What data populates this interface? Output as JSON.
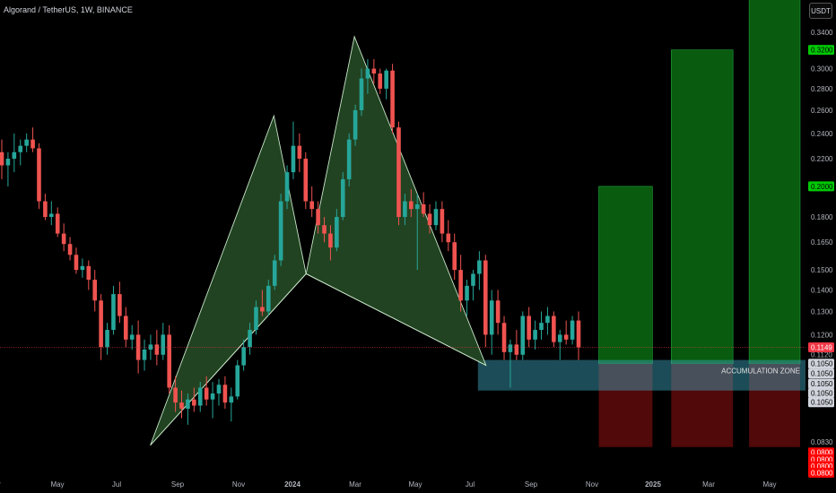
{
  "header": {
    "title": "Algorand / TetherUS, 1W, BINANCE",
    "currency": "USDT"
  },
  "chart_data": {
    "type": "candlestick",
    "title": "Algorand / TetherUS, 1W, BINANCE",
    "y_scale": "log",
    "ylim": [
      0.074,
      0.38
    ],
    "y_ticks": [
      "0.3400",
      "0.3000",
      "0.2800",
      "0.2600",
      "0.2400",
      "0.2200",
      "0.1800",
      "0.1650",
      "0.1500",
      "0.1400",
      "0.1300",
      "0.1200",
      "0.1120",
      "0.0830"
    ],
    "x_ticks": [
      "Mar",
      "May",
      "Jul",
      "Sep",
      "Nov",
      "2024",
      "Mar",
      "May",
      "Jul",
      "Sep",
      "Nov",
      "2025",
      "Mar",
      "May"
    ],
    "current_price": "0.1149",
    "price_tags": [
      {
        "label": "0.3200",
        "value": 0.32,
        "color": "#00c805",
        "text": "#000000"
      },
      {
        "label": "0.2000",
        "value": 0.2,
        "color": "#00c805",
        "text": "#000000"
      },
      {
        "label": "0.1149",
        "value": 0.1149,
        "color": "#f23645",
        "text": "#ffffff"
      },
      {
        "label": "0.1050",
        "value": 0.1086,
        "color": "#d1d4dc",
        "text": "#000000"
      },
      {
        "label": "0.1050",
        "value": 0.105,
        "color": "#d1d4dc",
        "text": "#000000"
      },
      {
        "label": "0.1050",
        "value": 0.1014,
        "color": "#d1d4dc",
        "text": "#000000"
      },
      {
        "label": "0.1050",
        "value": 0.0982,
        "color": "#d1d4dc",
        "text": "#000000"
      },
      {
        "label": "0.1050",
        "value": 0.0951,
        "color": "#d1d4dc",
        "text": "#000000"
      },
      {
        "label": "0.0800",
        "value": 0.08,
        "color": "#ff0000",
        "text": "#ffffff"
      },
      {
        "label": "0.0800",
        "value": 0.0781,
        "color": "#ff0000",
        "text": "#ffffff"
      },
      {
        "label": "0.0800",
        "value": 0.0763,
        "color": "#ff0000",
        "text": "#ffffff"
      },
      {
        "label": "0.0800",
        "value": 0.0746,
        "color": "#ff0000",
        "text": "#ffffff"
      }
    ],
    "annotations": {
      "accumulation_zone": "ACCUMULATION ZONE"
    },
    "colors": {
      "up": "#26a69a",
      "down": "#ef5350",
      "pattern_fill": "#2e5a2c",
      "pattern_line": "#c8e6c9",
      "target_green": "#0b6b12",
      "target_red": "#5a0a0a",
      "zone": "#1a4a55"
    },
    "harmonic_points": [
      [
        0.29,
        0.082
      ],
      [
        0.52,
        0.255
      ],
      [
        0.58,
        0.148
      ],
      [
        0.67,
        0.335
      ],
      [
        0.915,
        0.108
      ]
    ],
    "accumulation_zone": {
      "x0": 0.9,
      "x1": 1.5,
      "y_low": 0.099,
      "y_high": 0.11
    },
    "targets": [
      {
        "x0": 1.125,
        "x1": 1.225,
        "top": 0.2,
        "bottom": 0.0815
      },
      {
        "x0": 1.26,
        "x1": 1.375,
        "top": 0.32,
        "bottom": 0.0815
      },
      {
        "x0": 1.405,
        "x1": 1.5,
        "top": 0.42,
        "bottom": 0.0815
      }
    ],
    "candles": [
      [
        0.225,
        0.235,
        0.205,
        0.215
      ],
      [
        0.215,
        0.225,
        0.2,
        0.22
      ],
      [
        0.22,
        0.24,
        0.21,
        0.225
      ],
      [
        0.225,
        0.235,
        0.215,
        0.23
      ],
      [
        0.23,
        0.24,
        0.225,
        0.235
      ],
      [
        0.235,
        0.245,
        0.225,
        0.228
      ],
      [
        0.228,
        0.232,
        0.185,
        0.19
      ],
      [
        0.19,
        0.195,
        0.178,
        0.18
      ],
      [
        0.18,
        0.19,
        0.175,
        0.182
      ],
      [
        0.182,
        0.186,
        0.168,
        0.17
      ],
      [
        0.17,
        0.176,
        0.16,
        0.164
      ],
      [
        0.164,
        0.168,
        0.155,
        0.158
      ],
      [
        0.158,
        0.162,
        0.148,
        0.15
      ],
      [
        0.15,
        0.156,
        0.146,
        0.152
      ],
      [
        0.152,
        0.155,
        0.14,
        0.145
      ],
      [
        0.145,
        0.15,
        0.13,
        0.135
      ],
      [
        0.135,
        0.138,
        0.11,
        0.115
      ],
      [
        0.115,
        0.125,
        0.112,
        0.122
      ],
      [
        0.122,
        0.142,
        0.12,
        0.138
      ],
      [
        0.138,
        0.144,
        0.125,
        0.128
      ],
      [
        0.128,
        0.132,
        0.115,
        0.118
      ],
      [
        0.118,
        0.124,
        0.114,
        0.12
      ],
      [
        0.12,
        0.126,
        0.105,
        0.11
      ],
      [
        0.11,
        0.118,
        0.106,
        0.114
      ],
      [
        0.114,
        0.12,
        0.11,
        0.116
      ],
      [
        0.116,
        0.122,
        0.108,
        0.112
      ],
      [
        0.112,
        0.125,
        0.11,
        0.12
      ],
      [
        0.12,
        0.124,
        0.098,
        0.1
      ],
      [
        0.1,
        0.104,
        0.092,
        0.095
      ],
      [
        0.095,
        0.099,
        0.09,
        0.093
      ],
      [
        0.093,
        0.098,
        0.088,
        0.096
      ],
      [
        0.096,
        0.1,
        0.092,
        0.094
      ],
      [
        0.094,
        0.102,
        0.092,
        0.1
      ],
      [
        0.1,
        0.104,
        0.094,
        0.096
      ],
      [
        0.096,
        0.102,
        0.09,
        0.098
      ],
      [
        0.098,
        0.103,
        0.094,
        0.101
      ],
      [
        0.101,
        0.104,
        0.093,
        0.095
      ],
      [
        0.095,
        0.1,
        0.089,
        0.097
      ],
      [
        0.097,
        0.11,
        0.096,
        0.108
      ],
      [
        0.108,
        0.118,
        0.106,
        0.115
      ],
      [
        0.115,
        0.125,
        0.112,
        0.122
      ],
      [
        0.122,
        0.135,
        0.12,
        0.132
      ],
      [
        0.132,
        0.14,
        0.128,
        0.13
      ],
      [
        0.13,
        0.145,
        0.128,
        0.142
      ],
      [
        0.142,
        0.158,
        0.14,
        0.155
      ],
      [
        0.155,
        0.195,
        0.152,
        0.19
      ],
      [
        0.19,
        0.215,
        0.185,
        0.21
      ],
      [
        0.21,
        0.25,
        0.205,
        0.23
      ],
      [
        0.23,
        0.24,
        0.21,
        0.22
      ],
      [
        0.22,
        0.225,
        0.185,
        0.19
      ],
      [
        0.19,
        0.2,
        0.18,
        0.185
      ],
      [
        0.185,
        0.19,
        0.17,
        0.175
      ],
      [
        0.175,
        0.18,
        0.165,
        0.17
      ],
      [
        0.17,
        0.175,
        0.155,
        0.162
      ],
      [
        0.162,
        0.185,
        0.16,
        0.18
      ],
      [
        0.18,
        0.21,
        0.178,
        0.205
      ],
      [
        0.205,
        0.24,
        0.2,
        0.235
      ],
      [
        0.235,
        0.265,
        0.23,
        0.26
      ],
      [
        0.26,
        0.3,
        0.255,
        0.29
      ],
      [
        0.29,
        0.31,
        0.275,
        0.3
      ],
      [
        0.3,
        0.31,
        0.285,
        0.295
      ],
      [
        0.295,
        0.3,
        0.275,
        0.28
      ],
      [
        0.28,
        0.3,
        0.27,
        0.298
      ],
      [
        0.298,
        0.305,
        0.24,
        0.245
      ],
      [
        0.245,
        0.25,
        0.175,
        0.18
      ],
      [
        0.18,
        0.195,
        0.175,
        0.19
      ],
      [
        0.19,
        0.198,
        0.18,
        0.185
      ],
      [
        0.185,
        0.195,
        0.15,
        0.188
      ],
      [
        0.188,
        0.196,
        0.18,
        0.182
      ],
      [
        0.182,
        0.188,
        0.17,
        0.175
      ],
      [
        0.175,
        0.19,
        0.172,
        0.185
      ],
      [
        0.185,
        0.19,
        0.165,
        0.17
      ],
      [
        0.17,
        0.178,
        0.16,
        0.165
      ],
      [
        0.165,
        0.17,
        0.145,
        0.15
      ],
      [
        0.15,
        0.158,
        0.13,
        0.135
      ],
      [
        0.135,
        0.145,
        0.128,
        0.142
      ],
      [
        0.142,
        0.15,
        0.135,
        0.148
      ],
      [
        0.148,
        0.16,
        0.14,
        0.155
      ],
      [
        0.155,
        0.158,
        0.115,
        0.12
      ],
      [
        0.12,
        0.14,
        0.112,
        0.135
      ],
      [
        0.135,
        0.14,
        0.12,
        0.125
      ],
      [
        0.125,
        0.128,
        0.11,
        0.113
      ],
      [
        0.113,
        0.118,
        0.1,
        0.116
      ],
      [
        0.116,
        0.122,
        0.11,
        0.112
      ],
      [
        0.112,
        0.13,
        0.11,
        0.128
      ],
      [
        0.128,
        0.132,
        0.115,
        0.118
      ],
      [
        0.118,
        0.126,
        0.114,
        0.122
      ],
      [
        0.122,
        0.13,
        0.118,
        0.125
      ],
      [
        0.125,
        0.132,
        0.12,
        0.128
      ],
      [
        0.128,
        0.13,
        0.115,
        0.117
      ],
      [
        0.117,
        0.122,
        0.11,
        0.12
      ],
      [
        0.12,
        0.126,
        0.116,
        0.118
      ],
      [
        0.118,
        0.128,
        0.116,
        0.126
      ],
      [
        0.126,
        0.13,
        0.11,
        0.1149
      ]
    ]
  }
}
